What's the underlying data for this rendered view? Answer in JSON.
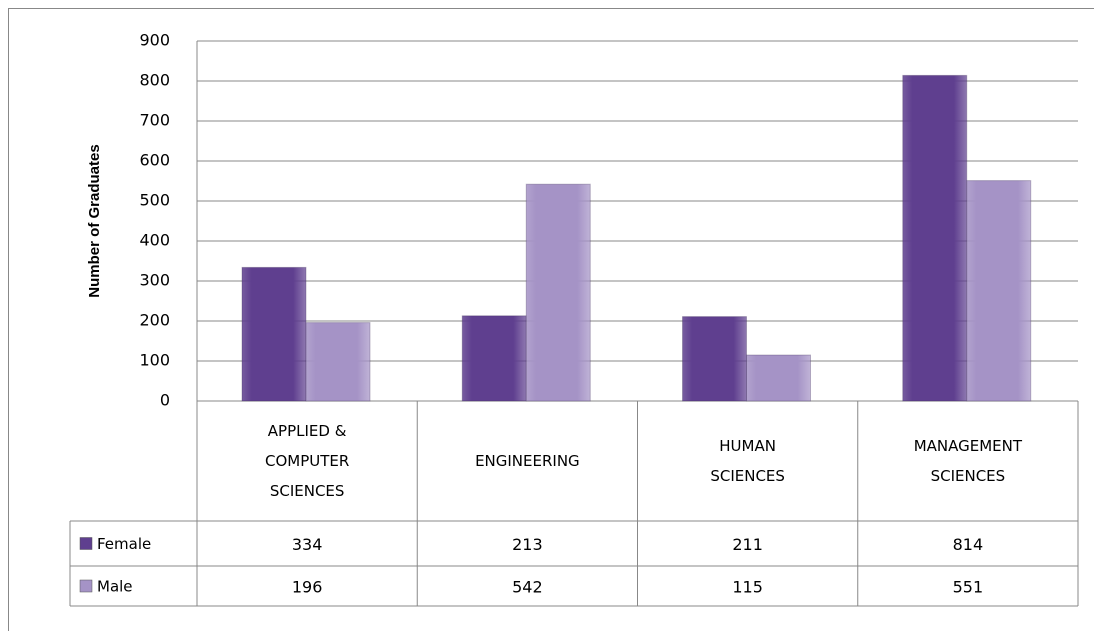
{
  "chart_data": {
    "type": "bar",
    "y_label": "Number of Graduates",
    "categories": [
      "APPLIED & COMPUTER SCIENCES",
      "ENGINEERING",
      "HUMAN SCIENCES",
      "MANAGEMENT SCIENCES"
    ],
    "series": [
      {
        "name": "Female",
        "color": "#5f3f8f",
        "values": [
          334,
          213,
          211,
          814
        ]
      },
      {
        "name": "Male",
        "color": "#a593c6",
        "values": [
          196,
          542,
          115,
          551
        ]
      }
    ],
    "ylim": [
      0,
      900
    ],
    "yticks": [
      0,
      100,
      200,
      300,
      400,
      500,
      600,
      700,
      800,
      900
    ],
    "grid": true
  }
}
